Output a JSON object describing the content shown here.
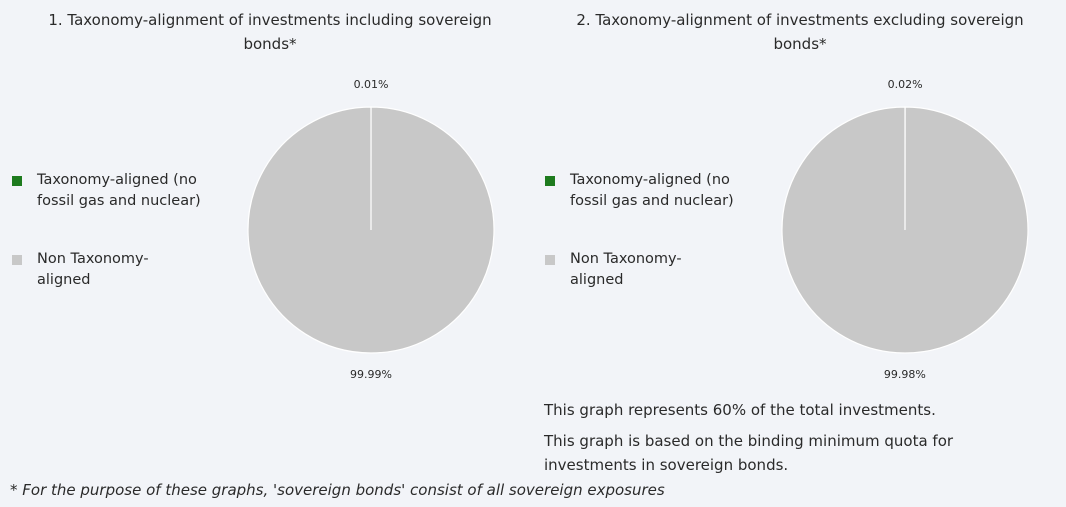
{
  "chart_data": [
    {
      "type": "pie",
      "title": "1. Taxonomy-alignment of investments including sovereign bonds*",
      "categories": [
        "Taxonomy-aligned (no fossil gas and nuclear)",
        "Non Taxonomy-aligned"
      ],
      "values": [
        0.01,
        99.99
      ],
      "value_labels": [
        "0.01%",
        "99.99%"
      ],
      "colors": [
        "#1e7b1e",
        "#c8c8c8"
      ],
      "legend": "left"
    },
    {
      "type": "pie",
      "title": "2. Taxonomy-alignment of investments excluding sovereign bonds*",
      "categories": [
        "Taxonomy-aligned (no fossil gas and nuclear)",
        "Non Taxonomy-aligned"
      ],
      "values": [
        0.02,
        99.98
      ],
      "value_labels": [
        "0.02%",
        "99.98%"
      ],
      "colors": [
        "#1e7b1e",
        "#c8c8c8"
      ],
      "legend": "left"
    }
  ],
  "notes": [
    "This graph represents 60% of the total investments.",
    "This graph is based on the binding minimum quota for investments in sovereign bonds."
  ],
  "footnote": "* For the purpose of these graphs, 'sovereign bonds' consist of all sovereign exposures"
}
